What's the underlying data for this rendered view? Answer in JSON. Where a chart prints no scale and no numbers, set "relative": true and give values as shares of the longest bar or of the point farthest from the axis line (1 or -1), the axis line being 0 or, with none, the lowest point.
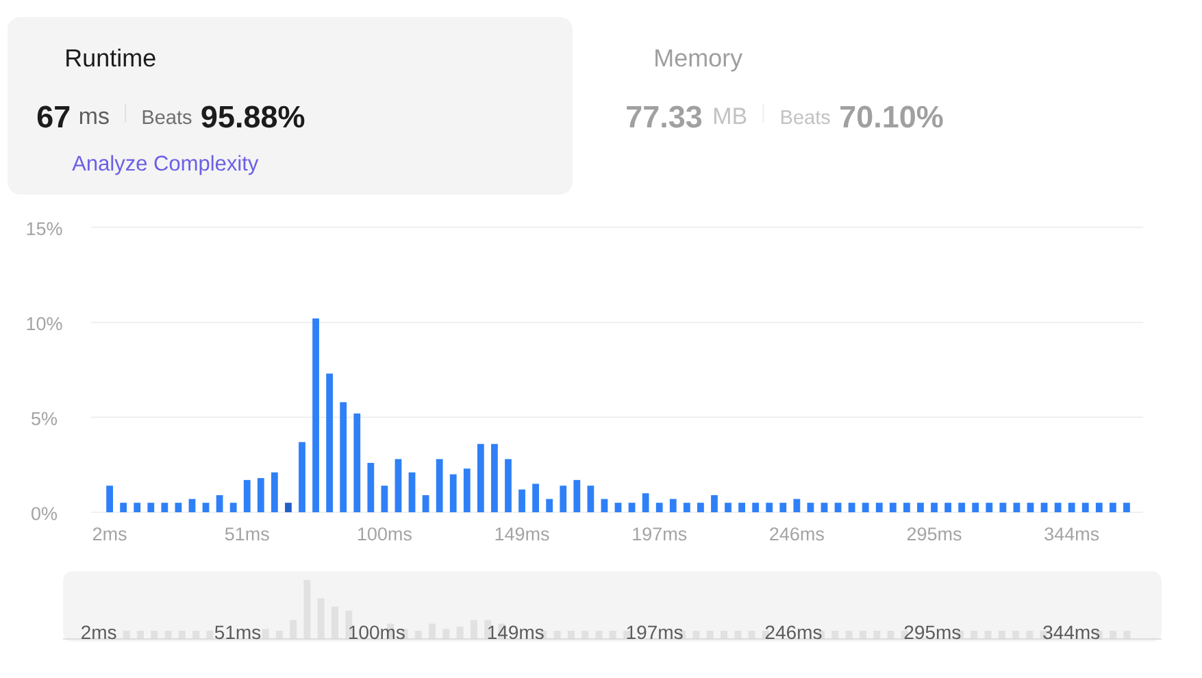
{
  "chart_data": [
    {
      "type": "other",
      "title": "Runtime",
      "annotations": [
        "67",
        "ms",
        "Beats",
        "95.88%",
        "Analyze Complexity"
      ]
    },
    {
      "type": "other",
      "title": "Memory",
      "annotations": [
        "77.33",
        "MB",
        "Beats",
        "70.10%"
      ]
    },
    {
      "type": "bar",
      "categories": [
        "2ms",
        null,
        null,
        null,
        null,
        null,
        null,
        null,
        null,
        null,
        "51ms",
        null,
        null,
        null,
        null,
        null,
        null,
        null,
        null,
        null,
        "100ms",
        null,
        null,
        null,
        null,
        null,
        null,
        null,
        null,
        null,
        "149ms",
        null,
        null,
        null,
        null,
        null,
        null,
        null,
        null,
        null,
        "197ms",
        null,
        null,
        null,
        null,
        null,
        null,
        null,
        null,
        null,
        "246ms",
        null,
        null,
        null,
        null,
        null,
        null,
        null,
        null,
        null,
        "295ms",
        null,
        null,
        null,
        null,
        null,
        null,
        null,
        null,
        null,
        "344ms",
        null,
        null,
        null,
        null
      ],
      "values": [
        1.4,
        0.5,
        0.5,
        0.5,
        0.5,
        0.5,
        0.7,
        0.5,
        0.9,
        0.5,
        1.7,
        1.8,
        2.1,
        0.5,
        3.7,
        10.2,
        7.3,
        5.8,
        5.2,
        2.6,
        1.4,
        2.8,
        2.1,
        0.9,
        2.8,
        2.0,
        2.3,
        3.6,
        3.6,
        2.8,
        1.2,
        1.5,
        0.7,
        1.4,
        1.7,
        1.4,
        0.7,
        0.5,
        0.5,
        1.0,
        0.5,
        0.7,
        0.5,
        0.5,
        0.9,
        0.5,
        0.5,
        0.5,
        0.5,
        0.5,
        0.7,
        0.5,
        0.5,
        0.5,
        0.5,
        0.5,
        0.5,
        0.5,
        0.5,
        0.5,
        0.5,
        0.5,
        0.5,
        0.5,
        0.5,
        0.5,
        0.5,
        0.5,
        0.5,
        0.5,
        0.5,
        0.5,
        0.5,
        0.5,
        0.5
      ],
      "colors": [
        "#2f80f7",
        "#2f80f7",
        "#2f80f7",
        "#2f80f7",
        "#2f80f7",
        "#2f80f7",
        "#2f80f7",
        "#2f80f7",
        "#2f80f7",
        "#2f80f7",
        "#2f80f7",
        "#2f80f7",
        "#2f80f7",
        "#2460c8",
        "#2f80f7",
        "#2f80f7",
        "#2f80f7",
        "#2f80f7",
        "#2f80f7",
        "#2f80f7",
        "#2f80f7",
        "#2f80f7",
        "#2f80f7",
        "#2f80f7",
        "#2f80f7",
        "#2f80f7",
        "#2f80f7",
        "#2f80f7",
        "#2f80f7",
        "#2f80f7",
        "#2f80f7",
        "#2f80f7",
        "#2f80f7",
        "#2f80f7",
        "#2f80f7",
        "#2f80f7",
        "#2f80f7",
        "#2f80f7",
        "#2f80f7",
        "#2f80f7",
        "#2f80f7",
        "#2f80f7",
        "#2f80f7",
        "#2f80f7",
        "#2f80f7",
        "#2f80f7",
        "#2f80f7",
        "#2f80f7",
        "#2f80f7",
        "#2f80f7",
        "#2f80f7",
        "#2f80f7",
        "#2f80f7",
        "#2f80f7",
        "#2f80f7",
        "#2f80f7",
        "#2f80f7",
        "#2f80f7",
        "#2f80f7",
        "#2f80f7",
        "#2f80f7",
        "#2f80f7",
        "#2f80f7",
        "#2f80f7",
        "#2f80f7",
        "#2f80f7",
        "#2f80f7",
        "#2f80f7",
        "#2f80f7",
        "#2f80f7",
        "#2f80f7",
        "#2f80f7",
        "#2f80f7",
        "#2f80f7",
        "#2f80f7"
      ],
      "ylim": [
        0,
        15
      ],
      "yticks": [
        {
          "value": 0,
          "label": "0%"
        },
        {
          "value": 5,
          "label": "5%"
        },
        {
          "value": 10,
          "label": "10%"
        },
        {
          "value": 15,
          "label": "15%"
        }
      ],
      "grid": "y"
    },
    {
      "type": "bar",
      "relative": true,
      "color": "#e1e1e1",
      "categories": [
        "2ms",
        null,
        null,
        null,
        null,
        null,
        null,
        null,
        null,
        null,
        "51ms",
        null,
        null,
        null,
        null,
        null,
        null,
        null,
        null,
        null,
        "100ms",
        null,
        null,
        null,
        null,
        null,
        null,
        null,
        null,
        null,
        "149ms",
        null,
        null,
        null,
        null,
        null,
        null,
        null,
        null,
        null,
        "197ms",
        null,
        null,
        null,
        null,
        null,
        null,
        null,
        null,
        null,
        "246ms",
        null,
        null,
        null,
        null,
        null,
        null,
        null,
        null,
        null,
        "295ms",
        null,
        null,
        null,
        null,
        null,
        null,
        null,
        null,
        null,
        "344ms",
        null,
        null,
        null,
        null
      ],
      "values": [
        null,
        null,
        0.14,
        0.14,
        0.14,
        0.14,
        0.14,
        0.14,
        0.14,
        null,
        null,
        null,
        0.17,
        0.14,
        0.32,
        1,
        0.69,
        0.55,
        0.48,
        null,
        null,
        0.26,
        0.17,
        0.14,
        0.26,
        0.17,
        0.21,
        0.32,
        0.32,
        0.26,
        null,
        null,
        0.14,
        0.14,
        0.14,
        0.14,
        0.14,
        0.14,
        0.14,
        null,
        null,
        null,
        0.14,
        0.14,
        0.14,
        0.14,
        0.14,
        0.14,
        0.14,
        null,
        null,
        null,
        0.14,
        0.14,
        0.14,
        0.14,
        0.14,
        0.14,
        0.14,
        null,
        null,
        null,
        0.14,
        0.14,
        0.14,
        0.14,
        0.14,
        0.14,
        0.14,
        null,
        null,
        null,
        0.14,
        0.14,
        0.14
      ]
    }
  ]
}
